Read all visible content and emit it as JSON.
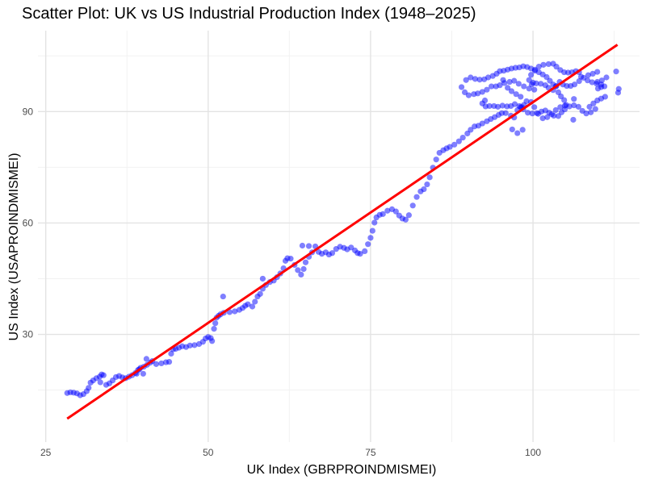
{
  "chart_data": {
    "type": "scatter",
    "title": "Scatter Plot: UK vs US Industrial Production Index (1948–2025)",
    "xlabel": "UK Index (GBRPROINDMISMEI)",
    "ylabel": "US Index (USAPROINDMISMEI)",
    "xlim": [
      23.8,
      116.4
    ],
    "ylim": [
      1.0,
      111.8
    ],
    "x_ticks": [
      25,
      50,
      75,
      100
    ],
    "y_ticks": [
      30,
      60,
      90
    ],
    "grid": true,
    "point_color": "#0000ff",
    "fit_line_color": "#ff0000",
    "fit_line": {
      "x": [
        28.3,
        113.0
      ],
      "y": [
        7.3,
        108.0
      ]
    },
    "series": [
      {
        "points": [
          [
            28.3,
            14.2
          ],
          [
            28.8,
            14.4
          ],
          [
            29.3,
            14.3
          ],
          [
            29.8,
            14.1
          ],
          [
            30.3,
            13.6
          ],
          [
            30.8,
            13.9
          ],
          [
            31.3,
            14.7
          ],
          [
            31.6,
            15.6
          ],
          [
            31.9,
            17.0
          ],
          [
            32.3,
            17.6
          ],
          [
            32.8,
            18.2
          ],
          [
            33.3,
            18.6
          ],
          [
            33.6,
            19.2
          ],
          [
            33.9,
            19.0
          ],
          [
            33.4,
            17.1
          ],
          [
            34.3,
            16.4
          ],
          [
            34.8,
            16.8
          ],
          [
            35.3,
            17.6
          ],
          [
            35.8,
            18.5
          ],
          [
            36.3,
            18.8
          ],
          [
            36.8,
            18.4
          ],
          [
            37.3,
            18.2
          ],
          [
            37.8,
            18.6
          ],
          [
            38.3,
            19.0
          ],
          [
            38.8,
            19.6
          ],
          [
            39.2,
            20.4
          ],
          [
            39.6,
            21.0
          ],
          [
            40.1,
            21.3
          ],
          [
            40.6,
            21.8
          ],
          [
            41.1,
            22.4
          ],
          [
            41.4,
            22.8
          ],
          [
            40.5,
            23.4
          ],
          [
            39.4,
            20.6
          ],
          [
            40.0,
            19.4
          ],
          [
            39.0,
            19.4
          ],
          [
            42.0,
            22.0
          ],
          [
            42.8,
            22.2
          ],
          [
            43.5,
            22.5
          ],
          [
            44.0,
            22.6
          ],
          [
            44.3,
            24.8
          ],
          [
            44.6,
            26.0
          ],
          [
            45.0,
            26.1
          ],
          [
            45.5,
            26.4
          ],
          [
            46.0,
            26.8
          ],
          [
            46.6,
            26.6
          ],
          [
            47.2,
            27.0
          ],
          [
            47.9,
            27.1
          ],
          [
            48.6,
            27.4
          ],
          [
            49.2,
            28.0
          ],
          [
            49.6,
            28.9
          ],
          [
            50.0,
            29.3
          ],
          [
            50.4,
            29.0
          ],
          [
            50.6,
            28.2
          ],
          [
            50.9,
            31.5
          ],
          [
            51.1,
            33.0
          ],
          [
            51.3,
            34.5
          ],
          [
            51.6,
            35.0
          ],
          [
            51.9,
            35.4
          ],
          [
            52.4,
            35.8
          ],
          [
            52.3,
            40.2
          ],
          [
            53.3,
            36.0
          ],
          [
            54.1,
            36.2
          ],
          [
            54.8,
            36.6
          ],
          [
            55.3,
            37.1
          ],
          [
            55.7,
            37.7
          ],
          [
            56.1,
            38.1
          ],
          [
            56.8,
            37.5
          ],
          [
            57.2,
            38.8
          ],
          [
            57.6,
            40.2
          ],
          [
            58.0,
            40.9
          ],
          [
            58.4,
            42.3
          ],
          [
            58.9,
            43.3
          ],
          [
            58.4,
            45.0
          ],
          [
            59.5,
            44.1
          ],
          [
            60.1,
            44.5
          ],
          [
            60.6,
            45.4
          ],
          [
            61.1,
            46.4
          ],
          [
            61.6,
            47.8
          ],
          [
            61.9,
            49.8
          ],
          [
            62.2,
            50.5
          ],
          [
            62.7,
            50.4
          ],
          [
            63.3,
            48.7
          ],
          [
            63.8,
            47.3
          ],
          [
            64.3,
            46.1
          ],
          [
            64.7,
            47.6
          ],
          [
            65.0,
            49.4
          ],
          [
            65.5,
            50.9
          ],
          [
            66.0,
            52.1
          ],
          [
            65.5,
            53.8
          ],
          [
            64.5,
            53.9
          ],
          [
            66.5,
            53.7
          ],
          [
            67.0,
            52.2
          ],
          [
            67.5,
            51.7
          ],
          [
            68.1,
            52.1
          ],
          [
            68.6,
            51.5
          ],
          [
            69.1,
            51.9
          ],
          [
            69.7,
            53.0
          ],
          [
            70.3,
            53.6
          ],
          [
            70.9,
            53.3
          ],
          [
            71.4,
            52.9
          ],
          [
            72.0,
            53.4
          ],
          [
            72.6,
            52.6
          ],
          [
            73.0,
            51.9
          ],
          [
            73.4,
            51.7
          ],
          [
            74.1,
            52.4
          ],
          [
            74.6,
            54.3
          ],
          [
            75.0,
            56.0
          ],
          [
            75.3,
            57.9
          ],
          [
            75.6,
            60.1
          ],
          [
            75.9,
            61.5
          ],
          [
            76.4,
            62.2
          ],
          [
            76.9,
            62.4
          ],
          [
            77.6,
            63.3
          ],
          [
            78.3,
            63.7
          ],
          [
            78.9,
            63.1
          ],
          [
            79.4,
            62.0
          ],
          [
            79.9,
            61.2
          ],
          [
            80.4,
            60.9
          ],
          [
            80.9,
            62.1
          ],
          [
            81.5,
            64.7
          ],
          [
            82.1,
            67.0
          ],
          [
            82.7,
            68.5
          ],
          [
            83.2,
            69.1
          ],
          [
            83.7,
            70.4
          ],
          [
            84.1,
            72.3
          ],
          [
            84.6,
            74.9
          ],
          [
            85.1,
            77.1
          ],
          [
            85.6,
            78.9
          ],
          [
            86.2,
            79.6
          ],
          [
            86.7,
            80.1
          ],
          [
            87.2,
            80.5
          ],
          [
            87.9,
            81.1
          ],
          [
            88.6,
            82.0
          ],
          [
            89.2,
            83.0
          ],
          [
            89.9,
            84.1
          ],
          [
            90.4,
            85.1
          ],
          [
            91.0,
            86.0
          ],
          [
            91.6,
            86.2
          ],
          [
            92.2,
            86.8
          ],
          [
            92.9,
            87.4
          ],
          [
            93.5,
            88.0
          ],
          [
            94.1,
            88.5
          ],
          [
            94.7,
            89.1
          ],
          [
            95.2,
            89.6
          ],
          [
            95.8,
            89.6
          ],
          [
            96.6,
            88.9
          ],
          [
            97.1,
            88.4
          ],
          [
            97.6,
            90.4
          ],
          [
            98.1,
            91.2
          ],
          [
            98.6,
            91.8
          ],
          [
            98.1,
            94.0
          ],
          [
            97.4,
            94.7
          ],
          [
            96.7,
            95.5
          ],
          [
            96.1,
            96.4
          ],
          [
            95.6,
            97.7
          ],
          [
            94.9,
            97.1
          ],
          [
            94.3,
            96.8
          ],
          [
            93.6,
            96.8
          ],
          [
            92.9,
            95.9
          ],
          [
            92.2,
            95.3
          ],
          [
            91.5,
            94.9
          ],
          [
            90.9,
            94.7
          ],
          [
            90.1,
            94.4
          ],
          [
            89.5,
            95.2
          ],
          [
            89.0,
            96.6
          ],
          [
            89.7,
            98.5
          ],
          [
            90.4,
            99.2
          ],
          [
            91.1,
            98.8
          ],
          [
            91.8,
            98.6
          ],
          [
            92.5,
            98.7
          ],
          [
            93.1,
            99.2
          ],
          [
            93.8,
            99.6
          ],
          [
            94.4,
            100.2
          ],
          [
            94.9,
            100.9
          ],
          [
            95.5,
            101.0
          ],
          [
            96.1,
            101.3
          ],
          [
            96.7,
            101.6
          ],
          [
            97.3,
            101.8
          ],
          [
            97.9,
            101.9
          ],
          [
            98.5,
            102.2
          ],
          [
            99.1,
            102.0
          ],
          [
            99.7,
            101.6
          ],
          [
            100.3,
            101.3
          ],
          [
            100.9,
            100.6
          ],
          [
            101.5,
            100.0
          ],
          [
            102.1,
            99.3
          ],
          [
            102.6,
            98.3
          ],
          [
            103.1,
            97.3
          ],
          [
            103.5,
            96.8
          ],
          [
            103.1,
            95.8
          ],
          [
            102.4,
            96.4
          ],
          [
            101.9,
            97.1
          ],
          [
            101.2,
            97.5
          ],
          [
            100.5,
            97.6
          ],
          [
            99.8,
            97.3
          ],
          [
            99.4,
            98.5
          ],
          [
            99.7,
            99.9
          ],
          [
            100.3,
            101.0
          ],
          [
            100.9,
            102.1
          ],
          [
            101.6,
            102.6
          ],
          [
            102.4,
            102.8
          ],
          [
            103.1,
            102.9
          ],
          [
            103.6,
            102.1
          ],
          [
            104.2,
            101.2
          ],
          [
            104.8,
            100.6
          ],
          [
            105.4,
            100.5
          ],
          [
            106.0,
            100.6
          ],
          [
            106.6,
            100.9
          ],
          [
            107.1,
            100.6
          ],
          [
            107.4,
            99.4
          ],
          [
            107.1,
            98.2
          ],
          [
            106.4,
            97.3
          ],
          [
            105.8,
            96.9
          ],
          [
            105.2,
            96.9
          ],
          [
            104.6,
            97.3
          ],
          [
            104.1,
            98.0
          ],
          [
            103.6,
            96.9
          ],
          [
            103.9,
            95.2
          ],
          [
            104.3,
            94.1
          ],
          [
            104.8,
            93.1
          ],
          [
            105.1,
            91.8
          ],
          [
            104.9,
            90.6
          ],
          [
            104.4,
            89.8
          ],
          [
            103.9,
            88.8
          ],
          [
            103.2,
            88.9
          ],
          [
            102.5,
            89.7
          ],
          [
            101.9,
            90.3
          ],
          [
            101.3,
            90.0
          ],
          [
            100.6,
            89.6
          ],
          [
            99.9,
            89.5
          ],
          [
            99.2,
            89.7
          ],
          [
            98.5,
            90.6
          ],
          [
            97.9,
            91.5
          ],
          [
            97.2,
            92.0
          ],
          [
            96.6,
            91.5
          ],
          [
            96.0,
            91.4
          ],
          [
            95.3,
            91.6
          ],
          [
            94.6,
            91.3
          ],
          [
            94.0,
            91.5
          ],
          [
            93.3,
            91.5
          ],
          [
            92.7,
            91.4
          ],
          [
            92.2,
            92.2
          ],
          [
            92.6,
            93.0
          ],
          [
            96.8,
            85.2
          ],
          [
            97.6,
            84.2
          ],
          [
            98.4,
            85.1
          ],
          [
            98.3,
            91.2
          ],
          [
            99.0,
            92.8
          ],
          [
            99.7,
            92.6
          ],
          [
            100.2,
            91.2
          ],
          [
            100.8,
            89.4
          ],
          [
            101.5,
            88.2
          ],
          [
            102.2,
            88.5
          ],
          [
            102.9,
            89.3
          ],
          [
            103.5,
            90.4
          ],
          [
            104.2,
            91.2
          ],
          [
            104.9,
            91.6
          ],
          [
            105.6,
            91.4
          ],
          [
            106.3,
            91.7
          ],
          [
            107.0,
            91.3
          ],
          [
            107.6,
            90.2
          ],
          [
            108.2,
            89.5
          ],
          [
            108.9,
            89.8
          ],
          [
            109.6,
            90.7
          ],
          [
            109.3,
            92.2
          ],
          [
            109.9,
            93.0
          ],
          [
            110.5,
            93.5
          ],
          [
            111.1,
            94.0
          ],
          [
            110.5,
            96.6
          ],
          [
            109.8,
            97.5
          ],
          [
            109.1,
            97.9
          ],
          [
            108.4,
            98.4
          ],
          [
            107.8,
            99.1
          ],
          [
            108.5,
            99.8
          ],
          [
            109.2,
            100.2
          ],
          [
            109.9,
            100.7
          ],
          [
            109.9,
            98.0
          ],
          [
            110.5,
            97.3
          ],
          [
            111.0,
            96.8
          ],
          [
            113.1,
            95.1
          ],
          [
            113.2,
            96.1
          ],
          [
            112.8,
            100.8
          ],
          [
            111.3,
            99.2
          ],
          [
            110.6,
            98.4
          ],
          [
            110.0,
            96.2
          ],
          [
            106.3,
            93.4
          ],
          [
            106.2,
            87.8
          ],
          [
            108.7,
            91.3
          ],
          [
            100.2,
            95.9
          ],
          [
            99.4,
            96.2
          ],
          [
            98.6,
            96.8
          ],
          [
            97.8,
            97.5
          ],
          [
            97.1,
            98.3
          ],
          [
            96.4,
            98.0
          ],
          [
            95.4,
            98.5
          ],
          [
            100.0,
            97.8
          ]
        ]
      }
    ]
  }
}
